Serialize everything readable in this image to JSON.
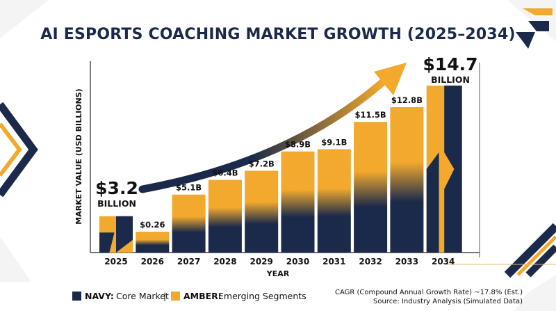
{
  "colors": {
    "navy": "#1b2a4a",
    "amber": "#f2a92e",
    "accent_line": "#e7b86e"
  },
  "chart_data": {
    "type": "bar",
    "title": "AI ESPORTS COACHING MARKET GROWTH (2025–2034)",
    "xlabel": "YEAR",
    "ylabel": "MARKET VALUE (USD BILLIONS)",
    "categories": [
      "2025",
      "2026",
      "2027",
      "2028",
      "2029",
      "2030",
      "2031",
      "2032",
      "2033",
      "2034"
    ],
    "values": [
      3.2,
      0.26,
      5.1,
      6.4,
      7.2,
      8.9,
      9.1,
      11.5,
      12.8,
      14.7
    ],
    "value_labels": [
      "",
      "$0.26",
      "$5.1B",
      "$6.4B",
      "$7.2B",
      "$8.9B",
      "$9.1B",
      "$11.5B",
      "$12.8B",
      ""
    ],
    "series": [
      {
        "name": "Core Market",
        "color": "#1b2a4a"
      },
      {
        "name": "Emerging Segments",
        "color": "#f2a92e"
      }
    ],
    "start_callout": {
      "value": "$3.2",
      "unit": "BILLION"
    },
    "end_callout": {
      "value": "$14.7",
      "unit": "BILLION"
    },
    "trend_arrow": true,
    "grid": false,
    "legend_position": "bottom-left"
  },
  "legend": {
    "navy_key": "NAVY:",
    "navy_text": "Core Market",
    "separator": "|",
    "amber_key": "AMBER:",
    "amber_text": "Emerging Segments"
  },
  "footer": {
    "cagr": "CAGR (Compound Annual Growth Rate) ~17.8% (Est.)",
    "source": "Source: Industry Analysis (Simulated Data)"
  }
}
